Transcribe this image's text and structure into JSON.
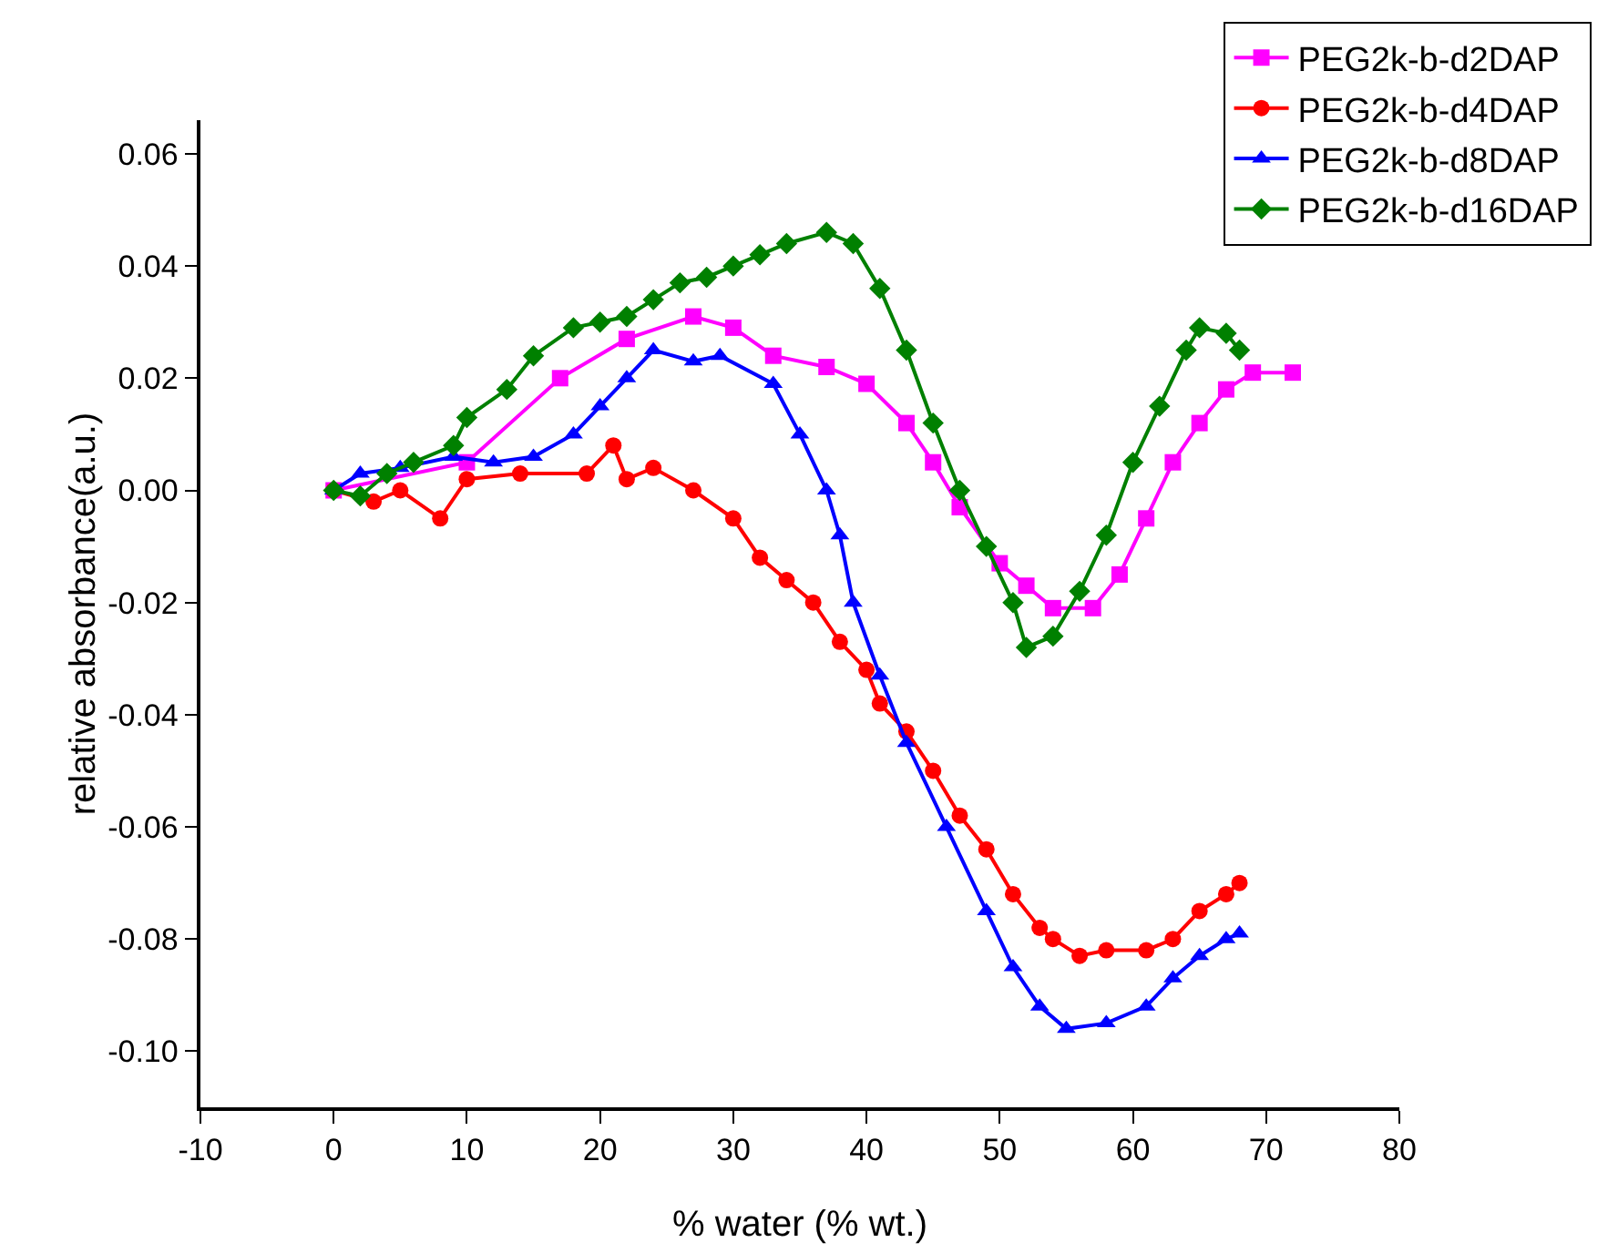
{
  "chart_data": {
    "type": "line",
    "xlabel": "% water (% wt.)",
    "ylabel": "relative absorbance(a.u.)",
    "legend": "top right",
    "grid": false,
    "line_style": "solid",
    "xlim": [
      -10,
      80
    ],
    "xticks": [
      -10,
      0,
      10,
      20,
      30,
      40,
      50,
      60,
      70,
      80
    ],
    "ylim": [
      -0.11,
      0.066
    ],
    "yticks": [
      {
        "value": -0.1,
        "label": "-0.10"
      },
      {
        "value": -0.08,
        "label": "-0.08"
      },
      {
        "value": -0.06,
        "label": "-0.06"
      },
      {
        "value": -0.04,
        "label": "-0.04"
      },
      {
        "value": -0.02,
        "label": "-0.02"
      },
      {
        "value": 0,
        "label": "0.00"
      },
      {
        "value": 0.02,
        "label": "0.02"
      },
      {
        "value": 0.04,
        "label": "0.04"
      },
      {
        "value": 0.06,
        "label": "0.06"
      }
    ],
    "series": [
      {
        "name": "PEG2k-b-d2DAP",
        "color": "#ff00ff",
        "marker": "square",
        "x": [
          0,
          10,
          17,
          22,
          27,
          30,
          33,
          37,
          40,
          43,
          45,
          47,
          50,
          52,
          54,
          57,
          59,
          61,
          63,
          65,
          67,
          69,
          72
        ],
        "values": [
          0,
          0.005,
          0.02,
          0.027,
          0.031,
          0.029,
          0.024,
          0.022,
          0.019,
          0.012,
          0.005,
          -0.003,
          -0.013,
          -0.017,
          -0.021,
          -0.021,
          -0.015,
          -0.005,
          0.005,
          0.012,
          0.018,
          0.021,
          0.021
        ]
      },
      {
        "name": "PEG2k-b-d4DAP",
        "color": "#ff0000",
        "marker": "circle",
        "x": [
          0,
          3,
          5,
          8,
          10,
          14,
          19,
          21,
          22,
          24,
          27,
          30,
          32,
          34,
          36,
          38,
          40,
          41,
          43,
          45,
          47,
          49,
          51,
          53,
          54,
          56,
          58,
          61,
          63,
          65,
          67,
          68
        ],
        "values": [
          0,
          -0.002,
          0,
          -0.005,
          0.002,
          0.003,
          0.003,
          0.008,
          0.002,
          0.004,
          0,
          -0.005,
          -0.012,
          -0.016,
          -0.02,
          -0.027,
          -0.032,
          -0.038,
          -0.043,
          -0.05,
          -0.058,
          -0.064,
          -0.072,
          -0.078,
          -0.08,
          -0.083,
          -0.082,
          -0.082,
          -0.08,
          -0.075,
          -0.072,
          -0.07
        ]
      },
      {
        "name": "PEG2k-b-d8DAP",
        "color": "#0000ff",
        "marker": "triangle",
        "x": [
          0,
          2,
          5,
          9,
          12,
          15,
          18,
          20,
          22,
          24,
          27,
          29,
          33,
          35,
          37,
          38,
          39,
          41,
          43,
          46,
          49,
          51,
          53,
          55,
          58,
          61,
          63,
          65,
          67,
          68
        ],
        "values": [
          0,
          0.003,
          0.004,
          0.006,
          0.005,
          0.006,
          0.01,
          0.015,
          0.02,
          0.025,
          0.023,
          0.024,
          0.019,
          0.01,
          0,
          -0.008,
          -0.02,
          -0.033,
          -0.045,
          -0.06,
          -0.075,
          -0.085,
          -0.092,
          -0.096,
          -0.095,
          -0.092,
          -0.087,
          -0.083,
          -0.08,
          -0.079
        ]
      },
      {
        "name": "PEG2k-b-d16DAP",
        "color": "#008000",
        "marker": "diamond",
        "x": [
          0,
          2,
          4,
          6,
          9,
          10,
          13,
          15,
          18,
          20,
          22,
          24,
          26,
          28,
          30,
          32,
          34,
          37,
          39,
          41,
          43,
          45,
          47,
          49,
          51,
          52,
          54,
          56,
          58,
          60,
          62,
          64,
          65,
          67,
          68
        ],
        "values": [
          0,
          -0.001,
          0.003,
          0.005,
          0.008,
          0.013,
          0.018,
          0.024,
          0.029,
          0.03,
          0.031,
          0.034,
          0.037,
          0.038,
          0.04,
          0.042,
          0.044,
          0.046,
          0.044,
          0.036,
          0.025,
          0.012,
          0,
          -0.01,
          -0.02,
          -0.028,
          -0.026,
          -0.018,
          -0.008,
          0.005,
          0.015,
          0.025,
          0.029,
          0.028,
          0.025
        ]
      }
    ]
  }
}
